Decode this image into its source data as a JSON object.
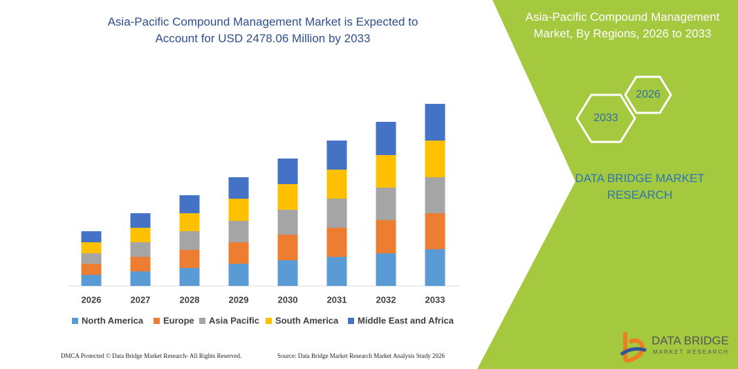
{
  "chart_data": {
    "type": "bar",
    "stacked": true,
    "title": "Asia-Pacific Compound Management Market is Expected to Account for USD 2478.06 Million by 2033",
    "categories": [
      "2026",
      "2027",
      "2028",
      "2029",
      "2030",
      "2031",
      "2032",
      "2033"
    ],
    "series": [
      {
        "name": "North America",
        "color": "#5b9bd5",
        "values": [
          16,
          21,
          26,
          32,
          37,
          42,
          47,
          53
        ]
      },
      {
        "name": "Europe",
        "color": "#ed7d31",
        "values": [
          16,
          21,
          26,
          31,
          37,
          42,
          48,
          52
        ]
      },
      {
        "name": "Asia Pacific",
        "color": "#a5a5a5",
        "values": [
          15,
          21,
          27,
          31,
          36,
          42,
          47,
          52
        ]
      },
      {
        "name": "South America",
        "color": "#ffc000",
        "values": [
          16,
          21,
          26,
          32,
          37,
          42,
          47,
          53
        ]
      },
      {
        "name": "Middle East and Africa",
        "color": "#4472c4",
        "values": [
          16,
          21,
          26,
          31,
          37,
          42,
          48,
          53
        ]
      }
    ]
  },
  "panel": {
    "title": "Asia-Pacific Compound Management Market, By Regions, 2026 to 2033",
    "hexagons": [
      "2033",
      "2026"
    ],
    "brand": "DATA BRIDGE MARKET RESEARCH"
  },
  "logo": {
    "name": "DATA BRIDGE",
    "tagline": "MARKET RESEARCH"
  },
  "footer": {
    "left": "DMCA Protected © Data Bridge Market Research-  All Rights Reserved.",
    "right": "Source: Data Bridge Market Research  Market Analysis Study 2026"
  }
}
